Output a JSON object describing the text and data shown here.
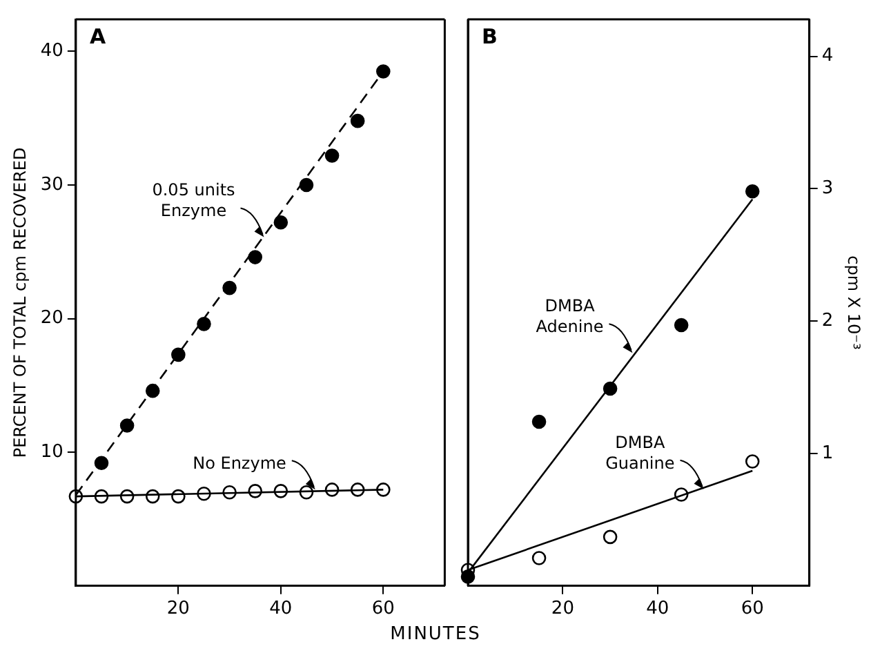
{
  "chart_data": [
    {
      "type": "scatter",
      "title": "A",
      "xlabel": "MINUTES",
      "ylabel": "PERCENT OF TOTAL cpm RECOVERED",
      "xlim": [
        0,
        72
      ],
      "xticks": [
        20,
        40,
        60
      ],
      "ylim": [
        0,
        42.4
      ],
      "yticks": [
        10,
        20,
        30,
        40
      ],
      "grid": false,
      "legend": false,
      "marker": "circle",
      "series": [
        {
          "type": "line",
          "color": "#000000",
          "line_style": "dashed",
          "marker": "none",
          "x": [
            0,
            60
          ],
          "values": [
            6.8,
            38.5
          ]
        },
        {
          "type": "scatter",
          "color": "#000000",
          "x": [
            5,
            10,
            15,
            20,
            25,
            30,
            35,
            40,
            45,
            50,
            55,
            60
          ],
          "values": [
            9.2,
            12.0,
            14.6,
            17.3,
            19.6,
            22.3,
            24.6,
            27.2,
            30.0,
            32.2,
            34.8,
            38.5
          ]
        },
        {
          "type": "line",
          "color": "#000000",
          "line_style": "solid",
          "marker": "none",
          "x": [
            0,
            60
          ],
          "values": [
            6.7,
            7.2
          ]
        },
        {
          "type": "scatter",
          "color": "#ffffff",
          "x": [
            0,
            5,
            10,
            15,
            20,
            25,
            30,
            35,
            40,
            45,
            50,
            55,
            60
          ],
          "values": [
            6.7,
            6.7,
            6.7,
            6.7,
            6.7,
            6.9,
            7.0,
            7.1,
            7.1,
            7.0,
            7.2,
            7.2,
            7.2
          ]
        }
      ],
      "annotations": [
        {
          "text": "0.05 units\nEnzyme",
          "x": 37,
          "y": 26
        },
        {
          "text": "No Enzyme",
          "x": 47,
          "y": 7.1
        }
      ]
    },
    {
      "type": "scatter",
      "title": "B",
      "ylabel": "cpm X 10⁻³",
      "xlim": [
        0,
        72
      ],
      "xticks": [
        20,
        40,
        60
      ],
      "ylim": [
        0,
        4.28
      ],
      "yticks": [
        1,
        2,
        3,
        4
      ],
      "grid": false,
      "legend": false,
      "marker": "circle",
      "series": [
        {
          "type": "line",
          "color": "#000000",
          "line_style": "solid",
          "marker": "none",
          "x": [
            0,
            60
          ],
          "values": [
            0.1,
            2.92
          ]
        },
        {
          "type": "scatter",
          "color": "#000000",
          "x": [
            0,
            15,
            30,
            45,
            60
          ],
          "values": [
            0.07,
            1.24,
            1.49,
            1.97,
            2.98
          ]
        },
        {
          "type": "line",
          "color": "#000000",
          "line_style": "solid",
          "marker": "none",
          "x": [
            0,
            60
          ],
          "values": [
            0.12,
            0.87
          ]
        },
        {
          "type": "scatter",
          "color": "#ffffff",
          "x": [
            0,
            15,
            30,
            45,
            60
          ],
          "values": [
            0.12,
            0.21,
            0.37,
            0.69,
            0.94
          ]
        }
      ],
      "annotations": [
        {
          "text": "DMBA\nAdenine",
          "x": 35,
          "y": 1.75
        },
        {
          "text": "DMBA\nGuanine",
          "x": 50,
          "y": 0.72
        }
      ]
    }
  ]
}
